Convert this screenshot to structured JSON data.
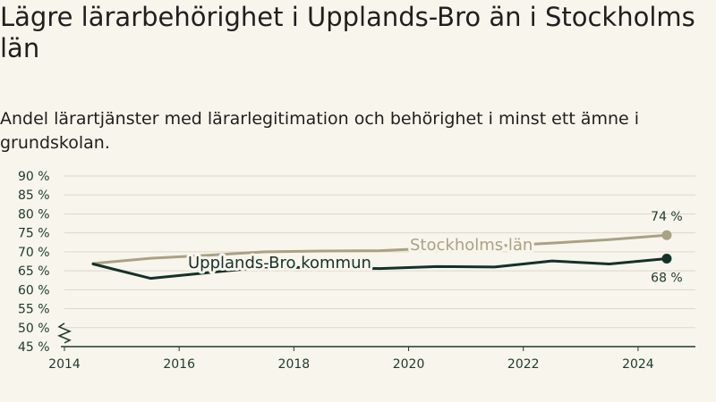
{
  "header": {
    "title": "Lägre lärarbehörighet i Upplands-Bro än i Stockholms län",
    "subtitle": "Andel lärartjänster med lärarlegitimation och behörighet i minst ett ämne i grundskolan."
  },
  "chart_data": {
    "type": "line",
    "title": "Lägre lärarbehörighet i Upplands-Bro än i Stockholms län",
    "subtitle": "Andel lärartjänster med lärarlegitimation och behörighet i minst ett ämne i grundskolan.",
    "xlabel": "",
    "ylabel": "",
    "xlim": [
      2014,
      2025
    ],
    "ylim": [
      45,
      90
    ],
    "axis_break": true,
    "grid": true,
    "x_ticks": [
      2014,
      2016,
      2018,
      2020,
      2022,
      2024
    ],
    "x_tick_labels": [
      "2014",
      "2016",
      "2018",
      "2020",
      "2022",
      "2024"
    ],
    "y_ticks": [
      45,
      50,
      55,
      60,
      65,
      70,
      75,
      80,
      85,
      90
    ],
    "y_tick_labels": [
      "45 %",
      "50 %",
      "55 %",
      "60 %",
      "65 %",
      "70 %",
      "75 %",
      "80 %",
      "85 %",
      "90 %"
    ],
    "x": [
      2014.5,
      2015.5,
      2016.5,
      2017.5,
      2018.5,
      2019.5,
      2020.5,
      2021.5,
      2022.5,
      2023.5,
      2024.5
    ],
    "series": [
      {
        "name": "Stockholms län",
        "color": "#a9a283",
        "values": [
          66.9,
          68.3,
          69.1,
          70.0,
          70.2,
          70.3,
          71.0,
          71.5,
          72.3,
          73.2,
          74.4
        ],
        "end_label": "74 %"
      },
      {
        "name": "Upplands-Bro kommun",
        "color": "#13322a",
        "values": [
          66.8,
          63.0,
          64.5,
          66.0,
          65.8,
          65.6,
          66.1,
          66.0,
          67.6,
          66.8,
          68.2
        ],
        "end_label": "68 %"
      }
    ],
    "colors": {
      "background": "#f8f5ec",
      "grid": "#ddd8cb",
      "axis": "#1d3a2e"
    }
  }
}
